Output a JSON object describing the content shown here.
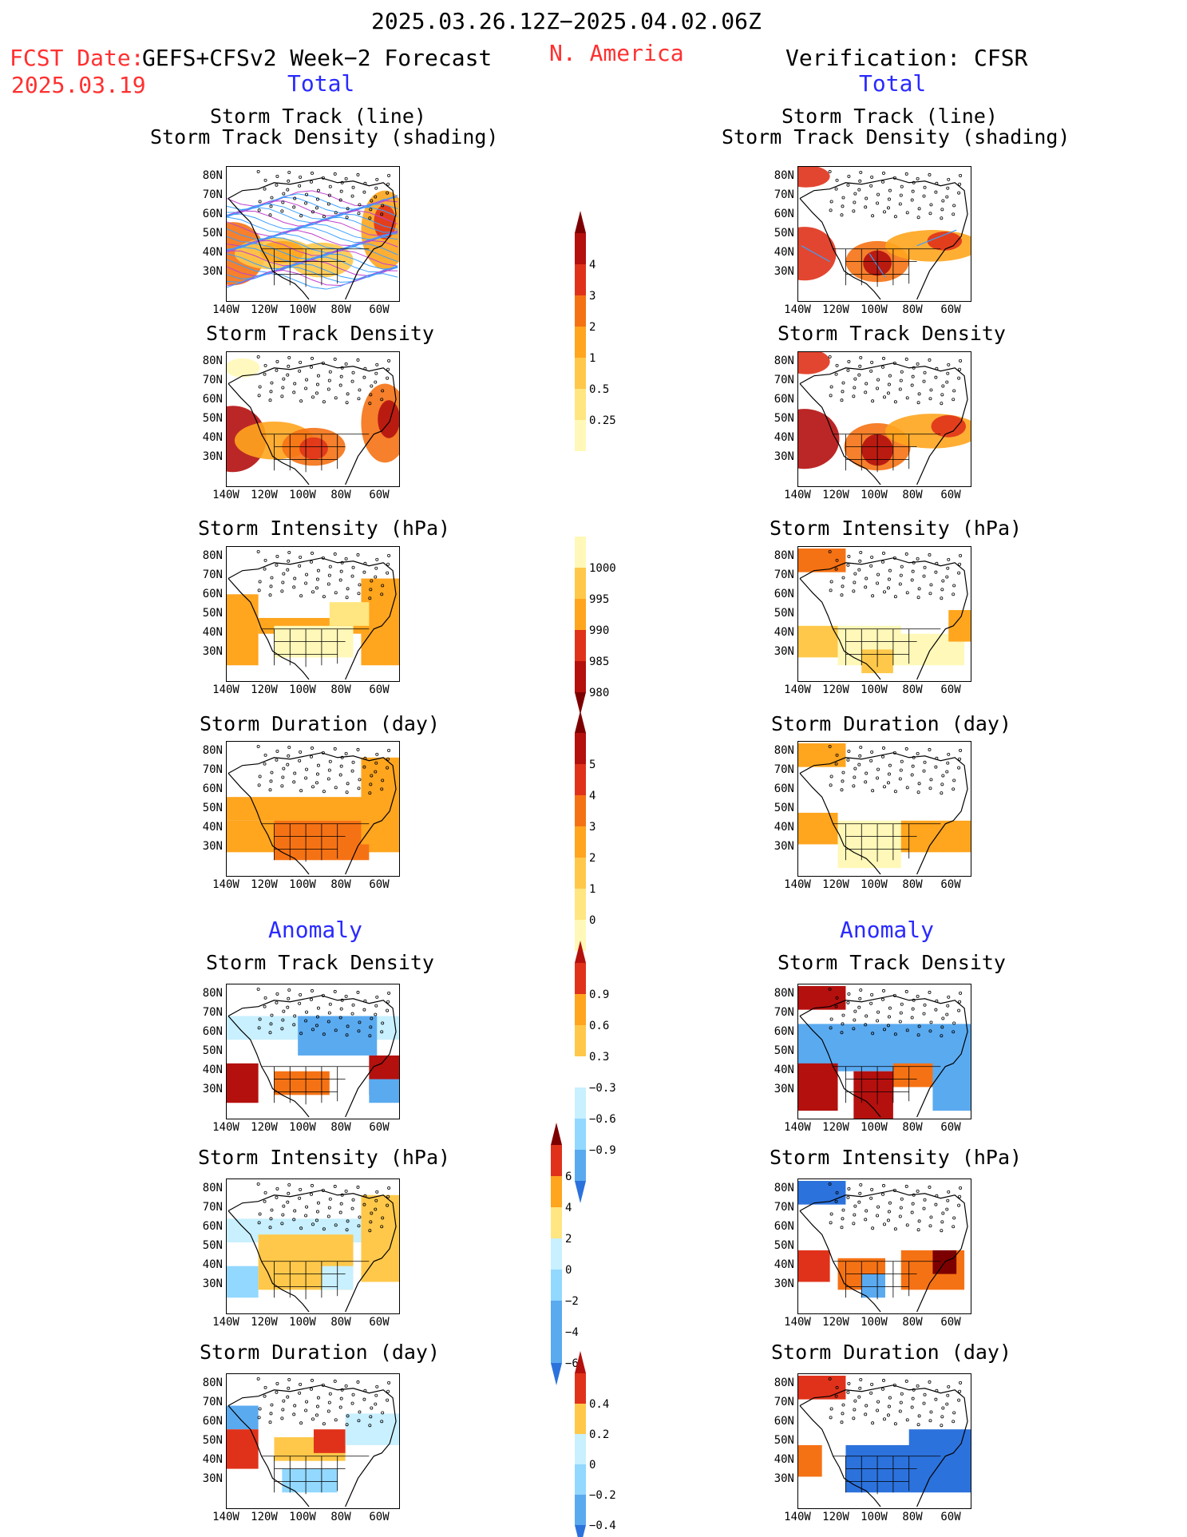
{
  "header": {
    "date_range": "2025.03.26.12Z−2025.04.02.06Z",
    "fcst_label": "FCST Date:",
    "fcst_date": "2025.03.19",
    "forecast_name": "GEFS+CFSv2 Week−2 Forecast",
    "region": "N. America",
    "verification": "Verification: CFSR"
  },
  "sections": {
    "total": "Total",
    "anomaly": "Anomaly"
  },
  "panel_titles": {
    "track_line_1": "Storm Track (line)",
    "track_line_2": "Storm Track Density (shading)",
    "density": "Storm Track Density",
    "intensity": "Storm Intensity (hPa)",
    "duration": "Storm Duration (day)"
  },
  "axes": {
    "lat_labels": [
      "80N",
      "70N",
      "60N",
      "50N",
      "40N",
      "30N"
    ],
    "lon_labels": [
      "140W",
      "120W",
      "100W",
      "80W",
      "60W"
    ]
  },
  "colorbars": {
    "density": [
      "4",
      "3",
      "2",
      "1",
      "0.5",
      "0.25"
    ],
    "intensity": [
      "1000",
      "995",
      "990",
      "985",
      "980"
    ],
    "duration": [
      "5",
      "4",
      "3",
      "2",
      "1",
      "0"
    ],
    "density_anom": [
      "0.9",
      "0.6",
      "0.3",
      "−0.3",
      "−0.6",
      "−0.9"
    ],
    "intensity_anom": [
      "6",
      "4",
      "2",
      "0",
      "−2",
      "−4",
      "−6"
    ],
    "duration_anom": [
      "0.4",
      "0.2",
      "0",
      "−0.2",
      "−0.4"
    ]
  },
  "colors": {
    "warm": [
      "#fff8b8",
      "#ffe680",
      "#ffc84a",
      "#ffa51e",
      "#f57214",
      "#e0321a",
      "#b4100e",
      "#7d0000"
    ],
    "cool": [
      "#ffffff",
      "#c8f0ff",
      "#92d8ff",
      "#5aaaf0",
      "#2c72dc",
      "#1446c0"
    ],
    "track_blue": "#3aa0ff",
    "track_purple": "#c040d0"
  }
}
